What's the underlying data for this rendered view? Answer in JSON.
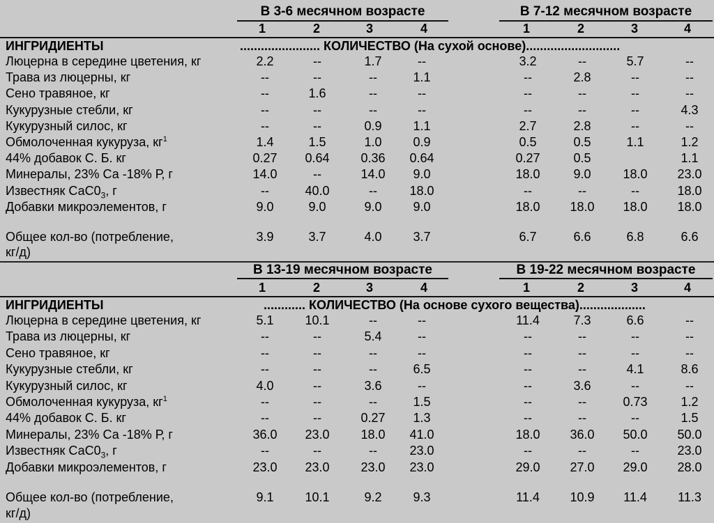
{
  "blocks": [
    {
      "age_left": "В 3-6 месячном возрасте",
      "age_right": "В 7-12 месячном возрасте",
      "numbers": [
        "1",
        "2",
        "3",
        "4",
        "1",
        "2",
        "3",
        "4"
      ],
      "ingredients_header": "ИНГРИДИЕНТЫ",
      "quantity_header": "....................... КОЛИЧЕСТВО (На сухой основе)...........................",
      "rows": [
        {
          "label": "Люцерна в середине цветения, кг",
          "sup": "",
          "values": [
            "2.2",
            "--",
            "1.7",
            "--",
            "3.2",
            "--",
            "5.7",
            "--"
          ]
        },
        {
          "label": "Трава из люцерны, кг",
          "sup": "",
          "values": [
            "--",
            "--",
            "--",
            "1.1",
            "--",
            "2.8",
            "--",
            "--"
          ]
        },
        {
          "label": "Сено травяное, кг",
          "sup": "",
          "values": [
            "--",
            "1.6",
            "--",
            "--",
            "--",
            "--",
            "--",
            "--"
          ]
        },
        {
          "label": "Кукурузные стебли, кг",
          "sup": "",
          "values": [
            "--",
            "--",
            "--",
            "--",
            "--",
            "--",
            "--",
            "4.3"
          ]
        },
        {
          "label": "Кукурузный силос, кг",
          "sup": "",
          "values": [
            "--",
            "--",
            "0.9",
            "1.1",
            "2.7",
            "2.8",
            "--",
            "--"
          ]
        },
        {
          "label": "Обмолоченная кукуруза, кг",
          "sup": "1",
          "values": [
            "1.4",
            "1.5",
            "1.0",
            "0.9",
            "0.5",
            "0.5",
            "1.1",
            "1.2"
          ]
        },
        {
          "label": "44% добавок С. Б. кг",
          "sup": "",
          "values": [
            "0.27",
            "0.64",
            "0.36",
            "0.64",
            "0.27",
            "0.5",
            "",
            "1.1"
          ]
        },
        {
          "label": "Минералы, 23% Са -18% Р, г",
          "sup": "",
          "values": [
            "14.0",
            "--",
            "14.0",
            "9.0",
            "18.0",
            "9.0",
            "18.0",
            "23.0"
          ]
        },
        {
          "label_pre": "Известняк СаС0",
          "label_sub": "3",
          "label_post": ", г",
          "values": [
            "--",
            "40.0",
            "--",
            "18.0",
            "--",
            "--",
            "--",
            "18.0"
          ]
        },
        {
          "label": "Добавки микроэлементов, г",
          "sup": "",
          "values": [
            "9.0",
            "9.0",
            "9.0",
            "9.0",
            "18.0",
            "18.0",
            "18.0",
            "18.0"
          ]
        }
      ],
      "total_label_1": "Общее кол-во (потребление,",
      "total_label_2": "кг/д)",
      "total_values": [
        "3.9",
        "3.7",
        "4.0",
        "3.7",
        "6.7",
        "6.6",
        "6.8",
        "6.6"
      ]
    },
    {
      "age_left": "В 13-19 месячном возрасте",
      "age_right": "В 19-22 месячном возрасте",
      "numbers": [
        "1",
        "2",
        "3",
        "4",
        "1",
        "2",
        "3",
        "4"
      ],
      "ingredients_header": "ИНГРИДИЕНТЫ",
      "quantity_header": "............ КОЛИЧЕСТВО (На основе сухого вещества)...................",
      "rows": [
        {
          "label": "Люцерна в середине цветения, кг",
          "sup": "",
          "values": [
            "5.1",
            "10.1",
            "--",
            "--",
            "11.4",
            "7.3",
            "6.6",
            "--"
          ]
        },
        {
          "label": "Трава из люцерны, кг",
          "sup": "",
          "values": [
            "--",
            "--",
            "5.4",
            "--",
            "--",
            "--",
            "--",
            "--"
          ]
        },
        {
          "label": "Сено травяное, кг",
          "sup": "",
          "values": [
            "--",
            "--",
            "--",
            "--",
            "--",
            "--",
            "--",
            "--"
          ]
        },
        {
          "label": "Кукурузные стебли, кг",
          "sup": "",
          "values": [
            "--",
            "--",
            "--",
            "6.5",
            "--",
            "--",
            "4.1",
            "8.6"
          ]
        },
        {
          "label": "Кукурузный силос, кг",
          "sup": "",
          "values": [
            "4.0",
            "--",
            "3.6",
            "--",
            "--",
            "3.6",
            "--",
            "--"
          ]
        },
        {
          "label": "Обмолоченная кукуруза, кг",
          "sup": "1",
          "values": [
            "--",
            "--",
            "--",
            "1.5",
            "--",
            "--",
            "0.73",
            "1.2"
          ]
        },
        {
          "label": "44% добавок С. Б. кг",
          "sup": "",
          "values": [
            "--",
            "--",
            "0.27",
            "1.3",
            "--",
            "--",
            "--",
            "1.5"
          ]
        },
        {
          "label": "Минералы, 23% Са -18% Р, г",
          "sup": "",
          "values": [
            "36.0",
            "23.0",
            "18.0",
            "41.0",
            "18.0",
            "36.0",
            "50.0",
            "50.0"
          ]
        },
        {
          "label_pre": "Известняк СаС0",
          "label_sub": "3",
          "label_post": ", г",
          "values": [
            "--",
            "--",
            "--",
            "23.0",
            "--",
            "--",
            "--",
            "23.0"
          ]
        },
        {
          "label": "Добавки микроэлементов, г",
          "sup": "",
          "values": [
            "23.0",
            "23.0",
            "23.0",
            "23.0",
            "29.0",
            "27.0",
            "29.0",
            "28.0"
          ]
        }
      ],
      "total_label_1": "Общее кол-во (потребление,",
      "total_label_2": "кг/д)",
      "total_values": [
        "9.1",
        "10.1",
        "9.2",
        "9.3",
        "11.4",
        "10.9",
        "11.4",
        "11.3"
      ]
    }
  ]
}
